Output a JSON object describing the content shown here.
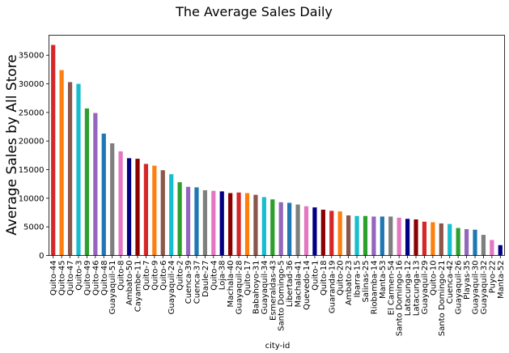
{
  "chart_data": {
    "type": "bar",
    "title": "The Average Sales Daily",
    "xlabel": "city-id",
    "ylabel": "Average Sales by All Store",
    "ylim": [
      0,
      38500
    ],
    "yticks": [
      0,
      5000,
      10000,
      15000,
      20000,
      25000,
      30000,
      35000
    ],
    "grid": false,
    "legend": "none",
    "categories": [
      "Quito-44",
      "Quito-45",
      "Quito-47",
      "Quito-3",
      "Quito-49",
      "Quito-46",
      "Quito-48",
      "Guayaquil-51",
      "Quito-8",
      "Ambato-50",
      "Cayambe-11",
      "Quito-7",
      "Quito-9",
      "Quito-6",
      "Guayaquil-24",
      "Quito-2",
      "Cuenca-39",
      "Cuenca-37",
      "Daule-27",
      "Quito-4",
      "Loja-38",
      "Machala-40",
      "Guayaquil-28",
      "Quito-17",
      "Babahoyo-31",
      "Guayaquil-34",
      "Esmeraldas-43",
      "Santo Domingo-5",
      "Libertad-36",
      "Machala-41",
      "Quevedo-14",
      "Quito-1",
      "Quito-18",
      "Guaranda-19",
      "Quito-20",
      "Ambato-23",
      "Ibarra-15",
      "Salinas-25",
      "Riobamba-14",
      "Manta-53",
      "El Carmen-54",
      "Santo Domingo-16",
      "Latacunga-12",
      "Latacunga-13",
      "Guayaquil-29",
      "Quito-10",
      "Santo Domingo-21",
      "Cuenca-42",
      "Guayaquil-26",
      "Playas-35",
      "Guayaquil-30",
      "Guayaquil-32",
      "Puyo-22",
      "Manta-52"
    ],
    "values": [
      36800,
      32400,
      30300,
      30000,
      25700,
      24900,
      21300,
      19600,
      18200,
      17000,
      16900,
      16000,
      15700,
      14900,
      14200,
      12800,
      12000,
      11900,
      11400,
      11300,
      11200,
      10900,
      11000,
      10900,
      10600,
      10200,
      9800,
      9300,
      9200,
      8900,
      8600,
      8400,
      8000,
      7800,
      7700,
      7000,
      6900,
      6900,
      6800,
      6800,
      6800,
      6600,
      6400,
      6300,
      5900,
      5800,
      5600,
      5500,
      4800,
      4600,
      4500,
      3600,
      2700,
      1800
    ],
    "colors": [
      "#d62728",
      "#ff7f0e",
      "#8c564b",
      "#17becf",
      "#2ca02c",
      "#9467bd",
      "#1f77b4",
      "#7f7f7f",
      "#e377c2",
      "#000080",
      "#8b0000"
    ]
  }
}
